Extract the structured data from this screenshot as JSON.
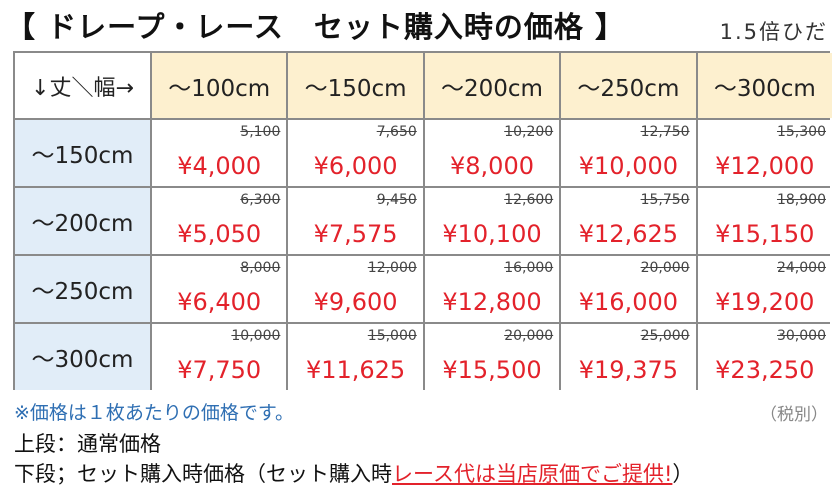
{
  "header": {
    "title": "【 ドレープ・レース　セット購入時の価格 】",
    "note": "1.5倍ひだ"
  },
  "table": {
    "corner": "↓丈＼幅→",
    "columns": [
      "～100cm",
      "～150cm",
      "～200cm",
      "～250cm",
      "～300cm"
    ],
    "rows": [
      {
        "label": "～150cm",
        "cells": [
          {
            "regular": "5,100",
            "set": "¥4,000"
          },
          {
            "regular": "7,650",
            "set": "¥6,000"
          },
          {
            "regular": "10,200",
            "set": "¥8,000"
          },
          {
            "regular": "12,750",
            "set": "¥10,000"
          },
          {
            "regular": "15,300",
            "set": "¥12,000"
          }
        ]
      },
      {
        "label": "～200cm",
        "cells": [
          {
            "regular": "6,300",
            "set": "¥5,050"
          },
          {
            "regular": "9,450",
            "set": "¥7,575"
          },
          {
            "regular": "12,600",
            "set": "¥10,100"
          },
          {
            "regular": "15,750",
            "set": "¥12,625"
          },
          {
            "regular": "18,900",
            "set": "¥15,150"
          }
        ]
      },
      {
        "label": "～250cm",
        "cells": [
          {
            "regular": "8,000",
            "set": "¥6,400"
          },
          {
            "regular": "12,000",
            "set": "¥9,600"
          },
          {
            "regular": "16,000",
            "set": "¥12,800"
          },
          {
            "regular": "20,000",
            "set": "¥16,000"
          },
          {
            "regular": "24,000",
            "set": "¥19,200"
          }
        ]
      },
      {
        "label": "～300cm",
        "cells": [
          {
            "regular": "10,000",
            "set": "¥7,750"
          },
          {
            "regular": "15,000",
            "set": "¥11,625"
          },
          {
            "regular": "20,000",
            "set": "¥15,500"
          },
          {
            "regular": "25,000",
            "set": "¥19,375"
          },
          {
            "regular": "30,000",
            "set": "¥23,250"
          }
        ]
      }
    ]
  },
  "footer": {
    "note": "※価格は１枚あたりの価格です。",
    "tax": "（税別）",
    "line1": "上段：通常価格",
    "line2_prefix": "下段；セット購入時価格（セット購入時",
    "line2_highlight": "レース代は当店原価でご提供!",
    "line2_suffix": "）"
  }
}
